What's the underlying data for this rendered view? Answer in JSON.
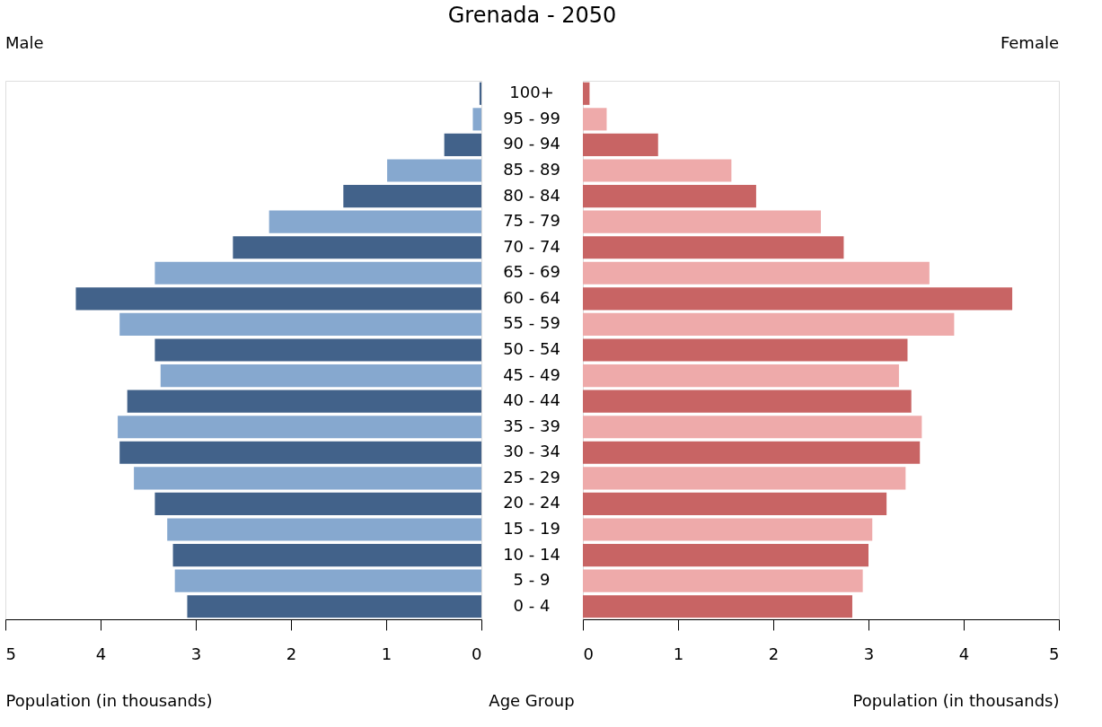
{
  "chart_data": [
    {
      "type": "bar",
      "orientation": "horizontal",
      "title": "Grenada - 2050",
      "xlabel": "Population (in thousands)",
      "ylabel": "Age Group",
      "grid": false,
      "categories": [
        "100+",
        "95 - 99",
        "90 - 94",
        "85 - 89",
        "80 - 84",
        "75 - 79",
        "70 - 74",
        "65 - 69",
        "60 - 64",
        "55 - 59",
        "50 - 54",
        "45 - 49",
        "40 - 44",
        "35 - 39",
        "30 - 34",
        "25 - 29",
        "20 - 24",
        "15 - 19",
        "10 - 14",
        "5 - 9",
        "0 - 4"
      ],
      "series": [
        {
          "name": "Male",
          "colors": [
            "#42628a",
            "#86a8cf",
            "#42628a",
            "#86a8cf",
            "#42628a",
            "#86a8cf",
            "#42628a",
            "#86a8cf",
            "#42628a",
            "#86a8cf",
            "#42628a",
            "#86a8cf",
            "#42628a",
            "#86a8cf",
            "#42628a",
            "#86a8cf",
            "#42628a",
            "#86a8cf",
            "#42628a",
            "#86a8cf",
            "#42628a"
          ],
          "values": [
            0.02,
            0.09,
            0.39,
            0.99,
            1.45,
            2.23,
            2.61,
            3.43,
            4.26,
            3.8,
            3.43,
            3.37,
            3.72,
            3.82,
            3.8,
            3.65,
            3.43,
            3.3,
            3.24,
            3.22,
            3.09
          ]
        }
      ],
      "xlim": [
        5,
        0
      ],
      "xticks": [
        5,
        4,
        3,
        2,
        1,
        0
      ]
    },
    {
      "type": "bar",
      "orientation": "horizontal",
      "xlabel": "Population (in thousands)",
      "grid": false,
      "tick_labels": "x",
      "series": [
        {
          "name": "Female",
          "colors": [
            "#c86464",
            "#eeaaaa",
            "#c86464",
            "#eeaaaa",
            "#c86464",
            "#eeaaaa",
            "#c86464",
            "#eeaaaa",
            "#c86464",
            "#eeaaaa",
            "#c86464",
            "#eeaaaa",
            "#c86464",
            "#eeaaaa",
            "#c86464",
            "#eeaaaa",
            "#c86464",
            "#eeaaaa",
            "#c86464",
            "#eeaaaa",
            "#c86464"
          ],
          "values": [
            0.07,
            0.25,
            0.79,
            1.56,
            1.82,
            2.5,
            2.74,
            3.64,
            4.51,
            3.9,
            3.41,
            3.32,
            3.45,
            3.56,
            3.54,
            3.39,
            3.19,
            3.04,
            3.0,
            2.94,
            2.83
          ]
        }
      ],
      "xlim": [
        0,
        5
      ],
      "xticks": [
        0,
        1,
        2,
        3,
        4,
        5
      ]
    }
  ]
}
